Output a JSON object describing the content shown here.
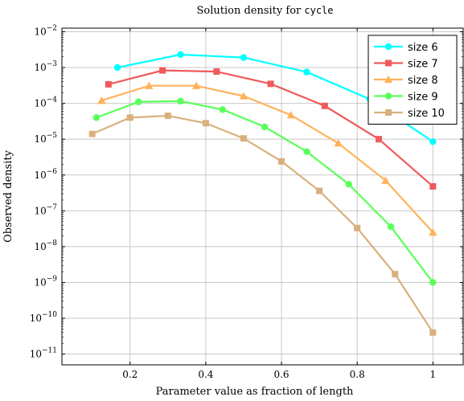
{
  "chart_data": {
    "type": "line",
    "title_prefix": "Solution density for ",
    "title_code": "cycle",
    "xlabel": "Parameter value as fraction of length",
    "ylabel": "Observed density",
    "xlim": [
      0.02,
      1.08
    ],
    "ylim_log10": [
      -11.3,
      -1.9
    ],
    "y_scale": "log",
    "grid": true,
    "legend_position": "top-right",
    "x_ticks": [
      0.2,
      0.4,
      0.6,
      0.8,
      1.0
    ],
    "x_tick_labels": [
      "0.2",
      "0.4",
      "0.6",
      "0.8",
      "1"
    ],
    "y_ticks_exp": [
      -2,
      -3,
      -4,
      -5,
      -6,
      -7,
      -8,
      -9,
      -10,
      -11
    ],
    "series": [
      {
        "name": "size 6",
        "color": "#00ffff",
        "marker": "circle",
        "x": [
          0.1667,
          0.3333,
          0.5,
          0.6667,
          0.8333,
          1.0
        ],
        "y": [
          0.001,
          0.0023,
          0.0019,
          0.00075,
          0.00013,
          8.5e-06
        ]
      },
      {
        "name": "size 7",
        "color": "#f05a5a",
        "marker": "square",
        "x": [
          0.1429,
          0.2857,
          0.4286,
          0.5714,
          0.7143,
          0.8571,
          1.0
        ],
        "y": [
          0.00034,
          0.00083,
          0.00077,
          0.00035,
          8.5e-05,
          1e-05,
          4.8e-07
        ]
      },
      {
        "name": "size 8",
        "color": "#ffb25a",
        "marker": "triangle",
        "x": [
          0.125,
          0.25,
          0.375,
          0.5,
          0.625,
          0.75,
          0.875,
          1.0
        ],
        "y": [
          0.00012,
          0.00031,
          0.00031,
          0.00016,
          4.7e-05,
          7.7e-06,
          7e-07,
          2.5e-08
        ]
      },
      {
        "name": "size 9",
        "color": "#5aff5a",
        "marker": "circle",
        "x": [
          0.1111,
          0.2222,
          0.3333,
          0.4444,
          0.5556,
          0.6667,
          0.7778,
          0.8889,
          1.0
        ],
        "y": [
          4e-05,
          0.00011,
          0.000115,
          6.7e-05,
          2.2e-05,
          4.5e-06,
          5.5e-07,
          3.6e-08,
          1e-09
        ]
      },
      {
        "name": "size 10",
        "color": "#d9b07d",
        "marker": "square",
        "x": [
          0.1,
          0.2,
          0.3,
          0.4,
          0.5,
          0.6,
          0.7,
          0.8,
          0.9,
          1.0
        ],
        "y": [
          1.4e-05,
          4e-05,
          4.5e-05,
          2.8e-05,
          1.05e-05,
          2.4e-06,
          3.6e-07,
          3.3e-08,
          1.7e-09,
          4e-11
        ]
      }
    ]
  }
}
